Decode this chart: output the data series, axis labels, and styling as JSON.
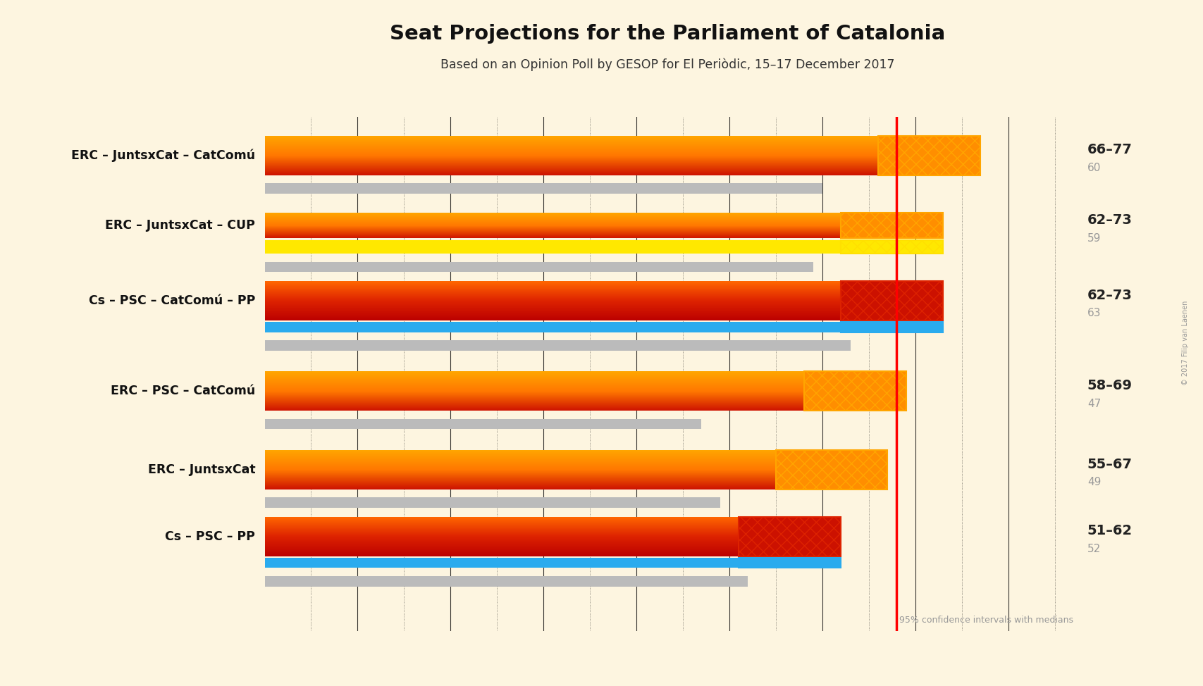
{
  "title": "Seat Projections for the Parliament of Catalonia",
  "subtitle": "Based on an Opinion Poll by GESOP for El Periòdic, 15–17 December 2017",
  "copyright": "© 2017 Filip van Laenen",
  "background_color": "#fdf5e0",
  "majority_line": 68,
  "x_min": 0,
  "x_max": 88,
  "coalitions": [
    {
      "label": "ERC – JuntsxCat – CatComú",
      "ci_low": 66,
      "ci_high": 77,
      "median": 60,
      "type": "orange_red",
      "range_label": "66–77",
      "median_label": "60"
    },
    {
      "label": "ERC – JuntsxCat – CUP",
      "ci_low": 62,
      "ci_high": 73,
      "median": 59,
      "type": "orange_yellow",
      "range_label": "62–73",
      "median_label": "59"
    },
    {
      "label": "Cs – PSC – CatComú – PP",
      "ci_low": 62,
      "ci_high": 73,
      "median": 63,
      "type": "red_blue",
      "range_label": "62–73",
      "median_label": "63"
    },
    {
      "label": "ERC – PSC – CatComú",
      "ci_low": 58,
      "ci_high": 69,
      "median": 47,
      "type": "orange_red",
      "range_label": "58–69",
      "median_label": "47"
    },
    {
      "label": "ERC – JuntsxCat",
      "ci_low": 55,
      "ci_high": 67,
      "median": 49,
      "type": "orange_red",
      "range_label": "55–67",
      "median_label": "49"
    },
    {
      "label": "Cs – PSC – PP",
      "ci_low": 51,
      "ci_high": 62,
      "median": 52,
      "type": "red_blue",
      "range_label": "51–62",
      "median_label": "52"
    }
  ],
  "grid_x": [
    10,
    20,
    30,
    40,
    50,
    60,
    70,
    80
  ],
  "dotted_x": [
    5,
    15,
    25,
    35,
    45,
    55,
    65,
    75,
    85
  ],
  "colors": {
    "orange_top": "#FFA500",
    "orange_mid": "#FF7700",
    "red_bottom": "#CC1100",
    "yellow": "#FFE800",
    "blue": "#2AABEE",
    "gray": "#BBBBBB",
    "hatch_orange": "#FFA500",
    "hatch_red": "#DD2200",
    "hatch_yellow": "#FFE000",
    "hatch_blue": "#2AABEE"
  }
}
